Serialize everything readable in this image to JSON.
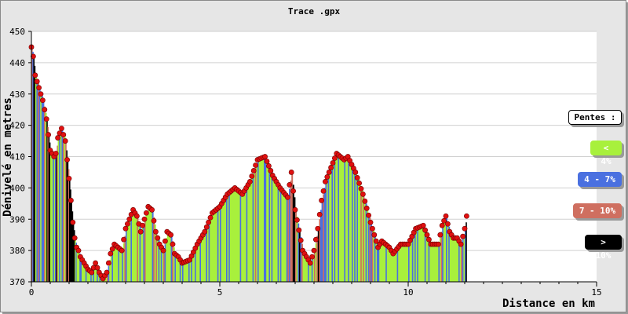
{
  "chart_data": {
    "type": "area",
    "title": "Trace .gpx",
    "xlabel": "Distance en km",
    "ylabel": "Dénivelé en metres",
    "xlim": [
      0,
      15
    ],
    "ylim": [
      370,
      450
    ],
    "xticks": [
      0,
      5,
      10,
      15
    ],
    "yticks": [
      370,
      380,
      390,
      400,
      410,
      420,
      430,
      440,
      450
    ],
    "grid": true,
    "legend_position": "right",
    "legend_title": "Pentes :",
    "legend": [
      {
        "label": "< 4%",
        "color": "#a8f03c",
        "text_color": "#ffffff"
      },
      {
        "label": "4 - 7%",
        "color": "#4a70e0",
        "text_color": "#ffffff"
      },
      {
        "label": "7 - 10%",
        "color": "#cf6f60",
        "text_color": "#ffffff"
      },
      {
        "label": "> 10%",
        "color": "#000000",
        "text_color": "#ffffff"
      }
    ],
    "colors": {
      "grade_lt4": "#a8f03c",
      "grade_4_7": "#4a70e0",
      "grade_7_10": "#cf6f60",
      "grade_gt10": "#000000",
      "point": "#e01010"
    },
    "series": [
      {
        "x": [
          0,
          0.05,
          0.1,
          0.2,
          0.3,
          0.4,
          0.45,
          0.5,
          0.6,
          0.65,
          0.7,
          0.8,
          0.9,
          0.95,
          1.0,
          1.05,
          1.1,
          1.15,
          1.2,
          1.25,
          1.3,
          1.4,
          1.5,
          1.6,
          1.7,
          1.8,
          1.9,
          2.0,
          2.1,
          2.2,
          2.3,
          2.4,
          2.5,
          2.6,
          2.7,
          2.8,
          2.9,
          3.0,
          3.1,
          3.2,
          3.3,
          3.4,
          3.5,
          3.6,
          3.7,
          3.8,
          3.9,
          4.0,
          4.2,
          4.4,
          4.6,
          4.8,
          5.0,
          5.2,
          5.4,
          5.6,
          5.8,
          6.0,
          6.2,
          6.4,
          6.6,
          6.8,
          6.9,
          7.0,
          7.2,
          7.4,
          7.5,
          7.6,
          7.7,
          7.8,
          8.0,
          8.1,
          8.3,
          8.4,
          8.6,
          8.8,
          9.0,
          9.2,
          9.3,
          9.5,
          9.6,
          9.8,
          10.0,
          10.2,
          10.4,
          10.6,
          10.8,
          10.9,
          11.0,
          11.1,
          11.2,
          11.3,
          11.4,
          11.5,
          11.55
        ],
        "values": [
          445,
          442,
          436,
          432,
          428,
          422,
          417,
          412,
          410,
          411,
          416,
          419,
          415,
          409,
          403,
          396,
          389,
          384,
          381,
          380,
          378,
          376,
          374,
          373,
          376,
          373,
          371,
          373,
          379,
          382,
          381,
          380,
          387,
          390,
          393,
          391,
          386,
          390,
          394,
          393,
          386,
          382,
          380,
          386,
          385,
          379,
          378,
          376,
          377,
          382,
          386,
          392,
          394,
          398,
          400,
          398,
          402,
          409,
          410,
          404,
          400,
          397,
          405,
          393,
          380,
          376,
          380,
          387,
          396,
          402,
          408,
          411,
          409,
          410,
          405,
          398,
          389,
          381,
          383,
          381,
          379,
          382,
          382,
          387,
          388,
          382,
          382,
          388,
          391,
          386,
          384,
          384,
          382,
          387,
          391
        ]
      }
    ]
  }
}
